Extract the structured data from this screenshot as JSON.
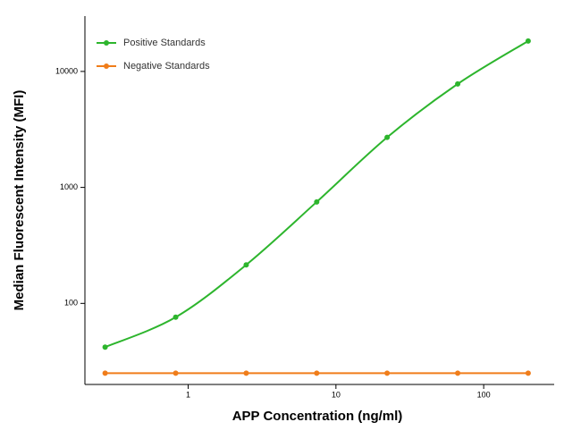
{
  "chart_data": {
    "type": "line",
    "xlabel": "APP Concentration (ng/ml)",
    "ylabel": "Median  Fluorescent Intensity  (MFI)",
    "x": [
      0.274,
      0.823,
      2.47,
      7.41,
      22.2,
      66.7,
      200
    ],
    "series": [
      {
        "name": "Positive Standards",
        "color": "#2db52d",
        "values": [
          42,
          76,
          215,
          750,
          2700,
          7800,
          18300
        ]
      },
      {
        "name": "Negative Standards",
        "color": "#f07d1a",
        "values": [
          25,
          25,
          25,
          25,
          25,
          25,
          25
        ]
      }
    ],
    "xscale": "log",
    "yscale": "log",
    "xlim": [
      0.2,
      300
    ],
    "ylim": [
      20,
      30000
    ],
    "xticks": [
      1,
      10,
      100
    ],
    "yticks": [
      100,
      1000,
      10000
    ],
    "legend": "upper left"
  }
}
